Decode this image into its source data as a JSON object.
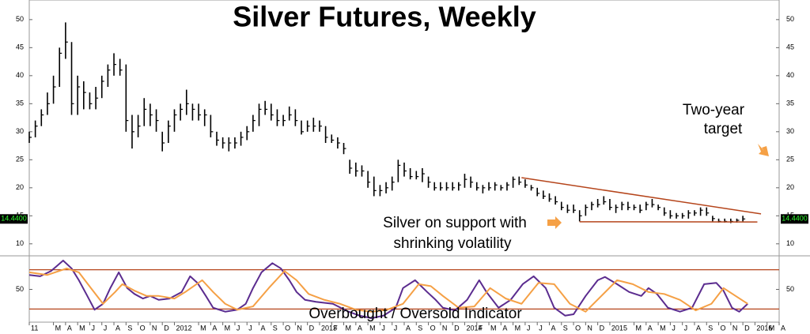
{
  "chart_data": [
    {
      "type": "ohlc",
      "title": "Silver Futures, Weekly",
      "x": [
        0,
        0.5,
        1,
        1.5,
        2,
        2.5,
        3,
        3.5,
        4,
        4.5,
        5,
        5.5,
        6,
        6.5,
        7,
        7.5,
        8,
        8.5,
        9,
        9.5,
        10,
        10.5,
        11,
        11.5,
        12,
        12.5,
        13,
        13.5,
        14,
        14.5,
        15,
        15.5,
        16,
        16.5,
        17,
        17.5,
        18,
        18.5,
        19,
        19.5,
        20,
        20.5,
        21,
        21.5,
        22,
        22.5,
        23,
        23.5,
        24,
        24.5,
        25,
        25.5,
        26,
        26.5,
        27,
        27.5,
        28,
        28.5,
        29,
        29.5,
        30,
        30.5,
        31,
        31.5,
        32,
        32.5,
        33,
        33.5,
        34,
        34.5,
        35,
        35.5,
        36,
        36.5,
        37,
        37.5,
        38,
        38.5,
        39,
        39.5,
        40,
        40.5,
        41,
        41.5,
        42,
        42.5,
        43,
        43.5,
        44,
        44.5,
        45,
        45.5,
        46,
        46.5,
        47,
        47.5,
        48,
        48.5,
        49,
        49.5,
        50,
        50.5,
        51,
        51.5,
        52,
        52.5,
        53,
        53.5,
        54,
        54.5,
        55,
        55.5,
        56,
        56.5,
        57,
        57.5,
        58,
        58.5,
        59
      ],
      "high": [
        30,
        32,
        34,
        37,
        40,
        45,
        49.5,
        46,
        40,
        39,
        37,
        38,
        40,
        42,
        44,
        43,
        42,
        33,
        33,
        36,
        35,
        34,
        30,
        32,
        34,
        35,
        37.5,
        35,
        35,
        34,
        33,
        30,
        29,
        29,
        29,
        30,
        31,
        33,
        35,
        35.5,
        35,
        34,
        33,
        34.5,
        34,
        32,
        32,
        32.5,
        32,
        31,
        29.5,
        29,
        28,
        25,
        24.5,
        24,
        23,
        22,
        20.5,
        21,
        22,
        25,
        24.5,
        23.5,
        23,
        23.5,
        22,
        21,
        21,
        21,
        21,
        21,
        22.5,
        22,
        21,
        20.5,
        21,
        21,
        20.5,
        21,
        22,
        22,
        21.5,
        20.5,
        20,
        19.5,
        19,
        18.5,
        17.5,
        17,
        17,
        16,
        17,
        17.5,
        18,
        18.5,
        18,
        17,
        17.5,
        17.5,
        17,
        17,
        17.5,
        18,
        17,
        16.5,
        16,
        15.5,
        15.5,
        16,
        16,
        16.5,
        16.5,
        15,
        14.5,
        14.5,
        14.5,
        14.5,
        15
      ],
      "low": [
        28,
        29,
        31,
        33,
        35,
        38,
        43,
        33,
        33,
        34,
        34,
        34,
        36,
        38,
        40,
        40,
        30,
        27,
        29,
        31,
        31,
        30,
        26.5,
        28,
        30,
        32,
        33,
        32,
        32,
        31,
        29,
        27.5,
        27,
        26.5,
        27,
        27.5,
        28.5,
        30,
        31,
        33,
        32,
        31,
        31,
        32,
        31,
        29.5,
        30,
        30,
        30,
        28,
        28,
        27,
        26,
        22.5,
        22,
        22,
        20,
        18.5,
        18.5,
        19,
        19.5,
        21,
        22,
        21.5,
        21.5,
        21,
        20,
        19.5,
        19.5,
        19.5,
        19.5,
        19.5,
        20,
        20,
        19.5,
        19,
        19.5,
        19.5,
        19.5,
        19.5,
        20,
        20.5,
        20,
        19.5,
        18.5,
        18,
        17.5,
        17,
        16,
        15.5,
        15.5,
        14,
        15,
        16,
        16.5,
        17,
        16,
        15.5,
        16,
        16,
        16,
        15.5,
        16,
        16.5,
        16,
        15,
        14.5,
        14.5,
        14.5,
        14.5,
        15,
        15,
        15,
        14,
        13.8,
        13.8,
        13.7,
        13.8,
        14
      ],
      "close": [
        29,
        31,
        33,
        35,
        38,
        44,
        46,
        35,
        38,
        37,
        35,
        36,
        39,
        41,
        42,
        41,
        32,
        30,
        31,
        34,
        33,
        32,
        28,
        31,
        33,
        34,
        35,
        34,
        33,
        33,
        30,
        28.5,
        28,
        28,
        28,
        29,
        30,
        32,
        34,
        34,
        33,
        32,
        32,
        33,
        32,
        30,
        31,
        31,
        31,
        29,
        28.5,
        28,
        27,
        23.5,
        23,
        23,
        21,
        19.5,
        19.5,
        20,
        21,
        24,
        23,
        22,
        22,
        22.5,
        21,
        20,
        20,
        20,
        20,
        20.5,
        21.5,
        21,
        20,
        20,
        20,
        20.5,
        20,
        20.5,
        21.5,
        21,
        20.5,
        20,
        19,
        18.5,
        18,
        17.5,
        16.5,
        16,
        16,
        15,
        16.5,
        17,
        17,
        17.5,
        16.5,
        16.5,
        17,
        16.5,
        16.5,
        16,
        17,
        17,
        16.5,
        15.5,
        15,
        15,
        15,
        15.5,
        15.5,
        16,
        15.5,
        14.5,
        14,
        14,
        14,
        14.2,
        14.44
      ],
      "color": "#000000",
      "xlim": [
        0,
        62
      ],
      "ylim": [
        8,
        53.5
      ],
      "yticks": [
        10,
        15,
        20,
        25,
        30,
        35,
        40,
        45,
        50
      ],
      "last_price": {
        "value": 14.44,
        "label": "14.4400"
      },
      "trendlines": [
        {
          "x": [
            40.7,
            60.5
          ],
          "values": [
            21.8,
            15.35
          ]
        },
        {
          "x": [
            45.5,
            60.2
          ],
          "values": [
            13.94,
            13.9
          ]
        }
      ],
      "trendline_color": "#b5451b",
      "annotations": [
        [
          "Two-year",
          "target"
        ],
        [
          "Silver on support with",
          "shrinking volatility"
        ]
      ]
    },
    {
      "type": "line",
      "title": "Overbought / Oversold Indicator",
      "xlim": [
        0,
        62
      ],
      "ylim": [
        0,
        100
      ],
      "yticks": [
        50
      ],
      "bands": [
        80,
        20
      ],
      "band_color": "#b5451b",
      "series": [
        {
          "color": "#5b2c8f",
          "x": [
            0,
            0.9,
            1.8,
            2.8,
            3.5,
            4.1,
            4.8,
            5.4,
            6.1,
            6.7,
            7.4,
            8.1,
            8.7,
            9.4,
            10,
            10.7,
            11.6,
            12.6,
            13.3,
            13.9,
            14.6,
            15.2,
            16.2,
            17.2,
            17.9,
            18.5,
            19.2,
            20.1,
            20.8,
            21.5,
            22.1,
            22.8,
            23.7,
            25.1,
            26.4,
            27.3,
            28.3,
            29.3,
            30.3,
            30.9,
            31.9,
            32.9,
            33.6,
            34.2,
            35.2,
            36.2,
            37.2,
            37.8,
            38.8,
            39.8,
            40.8,
            41.7,
            42.7,
            43.4,
            44.3,
            45,
            46,
            47,
            47.6,
            48.6,
            49.6,
            50.6,
            51.2,
            51.9,
            52.8,
            53.8,
            54.8,
            55.8,
            56.8,
            57.4,
            58.1,
            58.7,
            59.4
          ],
          "values": [
            72,
            70,
            78,
            94,
            82,
            64,
            40,
            19,
            28,
            52,
            76,
            52,
            43,
            36,
            40,
            34,
            36,
            46,
            70,
            60,
            40,
            22,
            16,
            19,
            28,
            52,
            76,
            90,
            82,
            64,
            46,
            34,
            31,
            28,
            16,
            10,
            6,
            10,
            22,
            52,
            64,
            46,
            34,
            22,
            18,
            34,
            64,
            46,
            22,
            34,
            58,
            70,
            52,
            22,
            10,
            12,
            40,
            64,
            69,
            58,
            46,
            40,
            52,
            43,
            22,
            16,
            22,
            58,
            60,
            48,
            22,
            16,
            28
          ]
        },
        {
          "color": "#f5a045",
          "x": [
            0,
            1.5,
            3.1,
            4.1,
            5.1,
            6.1,
            7.1,
            7.7,
            8.7,
            9.7,
            10.7,
            12,
            12.9,
            14.3,
            15.2,
            16.2,
            17.2,
            18.5,
            19.8,
            21.1,
            22.1,
            23.1,
            24.4,
            25.7,
            27,
            28.3,
            29.6,
            30.9,
            32.2,
            33.2,
            34.2,
            35.5,
            36.8,
            38.1,
            39.4,
            40.7,
            42.1,
            43.4,
            44.7,
            46,
            47.3,
            48.6,
            49.9,
            51.2,
            52.5,
            53.8,
            55.1,
            56.4,
            57.4,
            58.4,
            59.4
          ],
          "values": [
            76,
            72,
            82,
            76,
            52,
            28,
            46,
            58,
            48,
            40,
            40,
            36,
            46,
            64,
            46,
            28,
            19,
            24,
            52,
            78,
            64,
            43,
            34,
            28,
            19,
            16,
            19,
            28,
            58,
            55,
            40,
            22,
            24,
            52,
            36,
            28,
            60,
            58,
            28,
            16,
            40,
            64,
            58,
            46,
            43,
            34,
            18,
            28,
            52,
            40,
            28
          ]
        }
      ],
      "xticks": [
        {
          "value": 0,
          "label": "11"
        },
        {
          "value": 2,
          "label": "M"
        },
        {
          "value": 3,
          "label": "A"
        },
        {
          "value": 4,
          "label": "M"
        },
        {
          "value": 5,
          "label": "J"
        },
        {
          "value": 6,
          "label": "J"
        },
        {
          "value": 7,
          "label": "A"
        },
        {
          "value": 8,
          "label": "S"
        },
        {
          "value": 9,
          "label": "O"
        },
        {
          "value": 10,
          "label": "N"
        },
        {
          "value": 11,
          "label": "D"
        },
        {
          "value": 12,
          "label": "2012"
        },
        {
          "value": 14,
          "label": "M"
        },
        {
          "value": 15,
          "label": "A"
        },
        {
          "value": 16,
          "label": "M"
        },
        {
          "value": 17,
          "label": "J"
        },
        {
          "value": 18,
          "label": "J"
        },
        {
          "value": 19,
          "label": "A"
        },
        {
          "value": 20,
          "label": "S"
        },
        {
          "value": 21,
          "label": "O"
        },
        {
          "value": 22,
          "label": "N"
        },
        {
          "value": 23,
          "label": "D"
        },
        {
          "value": 24,
          "label": "2013"
        },
        {
          "value": 25,
          "label": "F"
        },
        {
          "value": 26,
          "label": "M"
        },
        {
          "value": 27,
          "label": "A"
        },
        {
          "value": 28,
          "label": "M"
        },
        {
          "value": 29,
          "label": "J"
        },
        {
          "value": 30,
          "label": "J"
        },
        {
          "value": 31,
          "label": "A"
        },
        {
          "value": 32,
          "label": "S"
        },
        {
          "value": 33,
          "label": "O"
        },
        {
          "value": 34,
          "label": "N"
        },
        {
          "value": 35,
          "label": "D"
        },
        {
          "value": 36,
          "label": "2014"
        },
        {
          "value": 37,
          "label": "F"
        },
        {
          "value": 38,
          "label": "M"
        },
        {
          "value": 39,
          "label": "A"
        },
        {
          "value": 40,
          "label": "M"
        },
        {
          "value": 41,
          "label": "J"
        },
        {
          "value": 42,
          "label": "J"
        },
        {
          "value": 43,
          "label": "A"
        },
        {
          "value": 44,
          "label": "S"
        },
        {
          "value": 45,
          "label": "O"
        },
        {
          "value": 46,
          "label": "N"
        },
        {
          "value": 47,
          "label": "D"
        },
        {
          "value": 48,
          "label": "2015"
        },
        {
          "value": 50,
          "label": "M"
        },
        {
          "value": 51,
          "label": "A"
        },
        {
          "value": 52,
          "label": "M"
        },
        {
          "value": 53,
          "label": "J"
        },
        {
          "value": 54,
          "label": "J"
        },
        {
          "value": 55,
          "label": "A"
        },
        {
          "value": 56,
          "label": "S"
        },
        {
          "value": 57,
          "label": "O"
        },
        {
          "value": 58,
          "label": "N"
        },
        {
          "value": 59,
          "label": "D"
        },
        {
          "value": 60,
          "label": "2016"
        },
        {
          "value": 61,
          "label": "M"
        },
        {
          "value": 62,
          "label": "A"
        }
      ]
    }
  ]
}
